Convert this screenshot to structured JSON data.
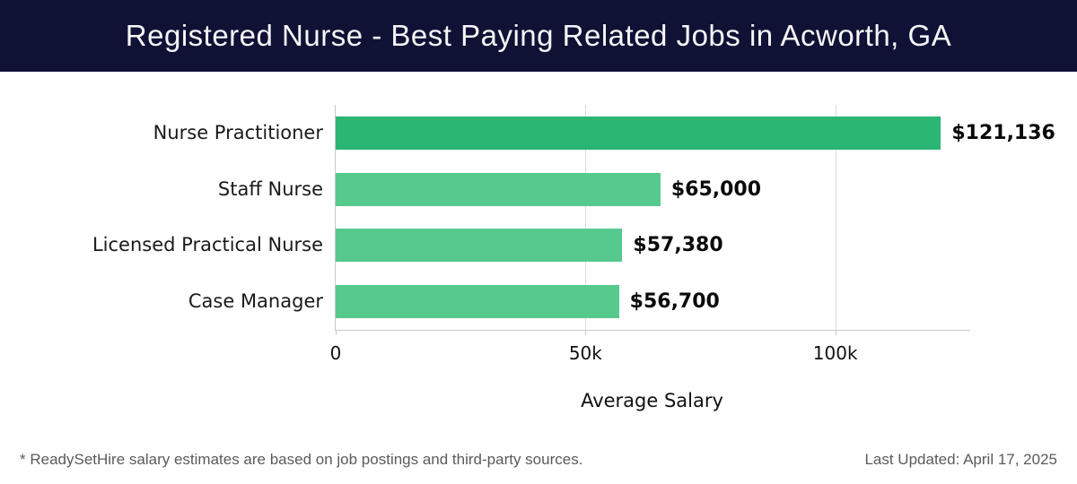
{
  "header": {
    "title": "Registered Nurse - Best Paying Related Jobs in Acworth, GA"
  },
  "colors": {
    "header_bg": "#0f1135",
    "header_text": "#f5f6f7",
    "bar_highlight": "#2ab573",
    "bar_regular": "#56c98c",
    "gridline": "#dcdcdc",
    "axis_line": "#c8c8c8",
    "footer_text": "#5a5a5c"
  },
  "chart_data": {
    "type": "bar",
    "orientation": "horizontal",
    "title": "Registered Nurse - Best Paying Related Jobs in Acworth, GA",
    "categories": [
      "Nurse Practitioner",
      "Staff Nurse",
      "Licensed Practical Nurse",
      "Case Manager"
    ],
    "values": [
      121136,
      65000,
      57380,
      56700
    ],
    "value_labels": [
      "$121,136",
      "$65,000",
      "$57,380",
      "$56,700"
    ],
    "highlight_index": 0,
    "xlabel": "Average Salary",
    "ylabel": "",
    "xlim": [
      0,
      127000
    ],
    "x_ticks": [
      {
        "value": 0,
        "label": "0"
      },
      {
        "value": 50000,
        "label": "50k"
      },
      {
        "value": 100000,
        "label": "100k"
      }
    ],
    "grid": true,
    "legend": "none"
  },
  "footer": {
    "note": "* ReadySetHire salary estimates are based on job postings and third-party sources.",
    "last_updated": "Last Updated: April 17, 2025"
  }
}
